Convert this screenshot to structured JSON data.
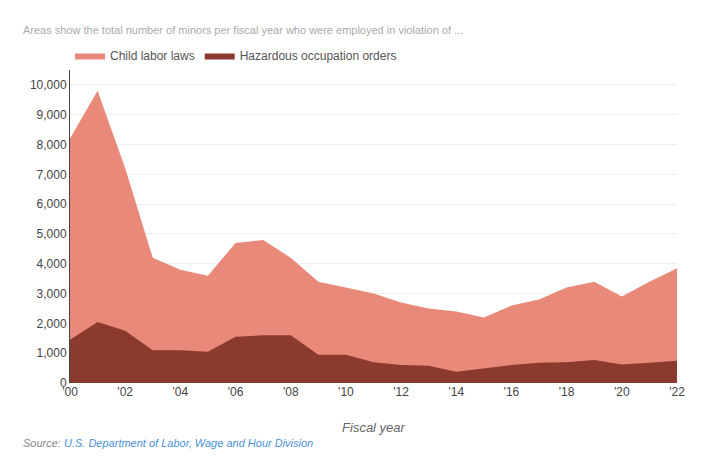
{
  "chart_data": {
    "type": "area",
    "subtitle": "Areas show the total number of minors per fiscal year who were employed in violation of ...",
    "x_label": "Fiscal year",
    "x": [
      2000,
      2001,
      2002,
      2003,
      2004,
      2005,
      2006,
      2007,
      2008,
      2009,
      2010,
      2011,
      2012,
      2013,
      2014,
      2015,
      2016,
      2017,
      2018,
      2019,
      2020,
      2021,
      2022
    ],
    "series": [
      {
        "name": "Child labor laws",
        "color": "#e8897a",
        "values": [
          8200,
          9800,
          7200,
          4200,
          3800,
          3600,
          4700,
          4800,
          4200,
          3400,
          3200,
          3000,
          2700,
          2500,
          2400,
          2200,
          2600,
          2800,
          3200,
          3400,
          2900,
          3400,
          3850
        ]
      },
      {
        "name": "Hazardous occupation orders",
        "color": "#8b3a2e",
        "values": [
          1450,
          2050,
          1750,
          1100,
          1100,
          1050,
          1550,
          1600,
          1600,
          950,
          950,
          700,
          600,
          580,
          380,
          500,
          600,
          680,
          700,
          770,
          620,
          680,
          750
        ]
      }
    ],
    "stacked": false,
    "xlim": [
      2000,
      2022
    ],
    "xticks": [
      {
        "value": 2000,
        "label": "'00"
      },
      {
        "value": 2002,
        "label": "'02"
      },
      {
        "value": 2004,
        "label": "'04"
      },
      {
        "value": 2006,
        "label": "'06"
      },
      {
        "value": 2008,
        "label": "'08"
      },
      {
        "value": 2010,
        "label": "'10"
      },
      {
        "value": 2012,
        "label": "'12"
      },
      {
        "value": 2014,
        "label": "'14"
      },
      {
        "value": 2016,
        "label": "'16"
      },
      {
        "value": 2018,
        "label": "'18"
      },
      {
        "value": 2020,
        "label": "'20"
      },
      {
        "value": 2022,
        "label": "'22"
      }
    ],
    "ylim": [
      0,
      10500
    ],
    "yticks": [
      0,
      {
        "value": 1000,
        "label": "1,000"
      },
      {
        "value": 2000,
        "label": "2,000"
      },
      {
        "value": 3000,
        "label": "3,000"
      },
      {
        "value": 4000,
        "label": "4,000"
      },
      {
        "value": 5000,
        "label": "5,000"
      },
      {
        "value": 6000,
        "label": "6,000"
      },
      {
        "value": 7000,
        "label": "7,000"
      },
      {
        "value": 8000,
        "label": "8,000"
      },
      {
        "value": 9000,
        "label": "9,000"
      },
      {
        "value": 10000,
        "label": "10,000"
      }
    ],
    "grid": true,
    "legend": "upper left",
    "annotations": [
      {
        "text": "Source: ",
        "color": "#888888"
      },
      {
        "text": "U.S. Department of Labor, Wage and Hour Division",
        "color": "#4a90d9"
      }
    ]
  }
}
